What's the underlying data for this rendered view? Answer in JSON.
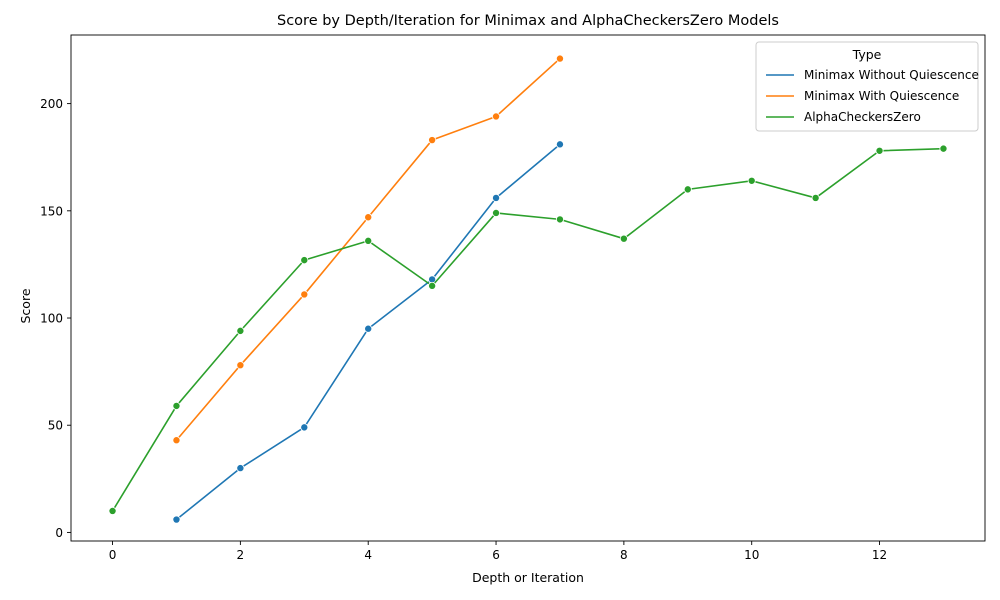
{
  "chart_data": {
    "type": "line",
    "title": "Score by Depth/Iteration for Minimax and AlphaCheckersZero Models",
    "xlabel": "Depth or Iteration",
    "ylabel": "Score",
    "xlim": [
      -0.65,
      13.65
    ],
    "ylim": [
      -4,
      232
    ],
    "xticks": [
      0,
      2,
      4,
      6,
      8,
      10,
      12
    ],
    "yticks": [
      0,
      50,
      100,
      150,
      200
    ],
    "grid": false,
    "legend_title": "Type",
    "legend_position": "top-right",
    "series": [
      {
        "name": "Minimax Without Quiescence",
        "color": "#1f77b4",
        "x": [
          1,
          2,
          3,
          4,
          5,
          6,
          7
        ],
        "y": [
          6,
          30,
          49,
          95,
          118,
          156,
          181
        ]
      },
      {
        "name": "Minimax With Quiescence",
        "color": "#ff7f0e",
        "x": [
          1,
          2,
          3,
          4,
          5,
          6,
          7
        ],
        "y": [
          43,
          78,
          111,
          147,
          183,
          194,
          221
        ]
      },
      {
        "name": "AlphaCheckersZero",
        "color": "#2ca02c",
        "x": [
          0,
          1,
          2,
          3,
          4,
          5,
          6,
          7,
          8,
          9,
          10,
          11,
          12,
          13
        ],
        "y": [
          10,
          59,
          94,
          127,
          136,
          115,
          149,
          146,
          137,
          160,
          164,
          156,
          178,
          179
        ]
      }
    ]
  }
}
